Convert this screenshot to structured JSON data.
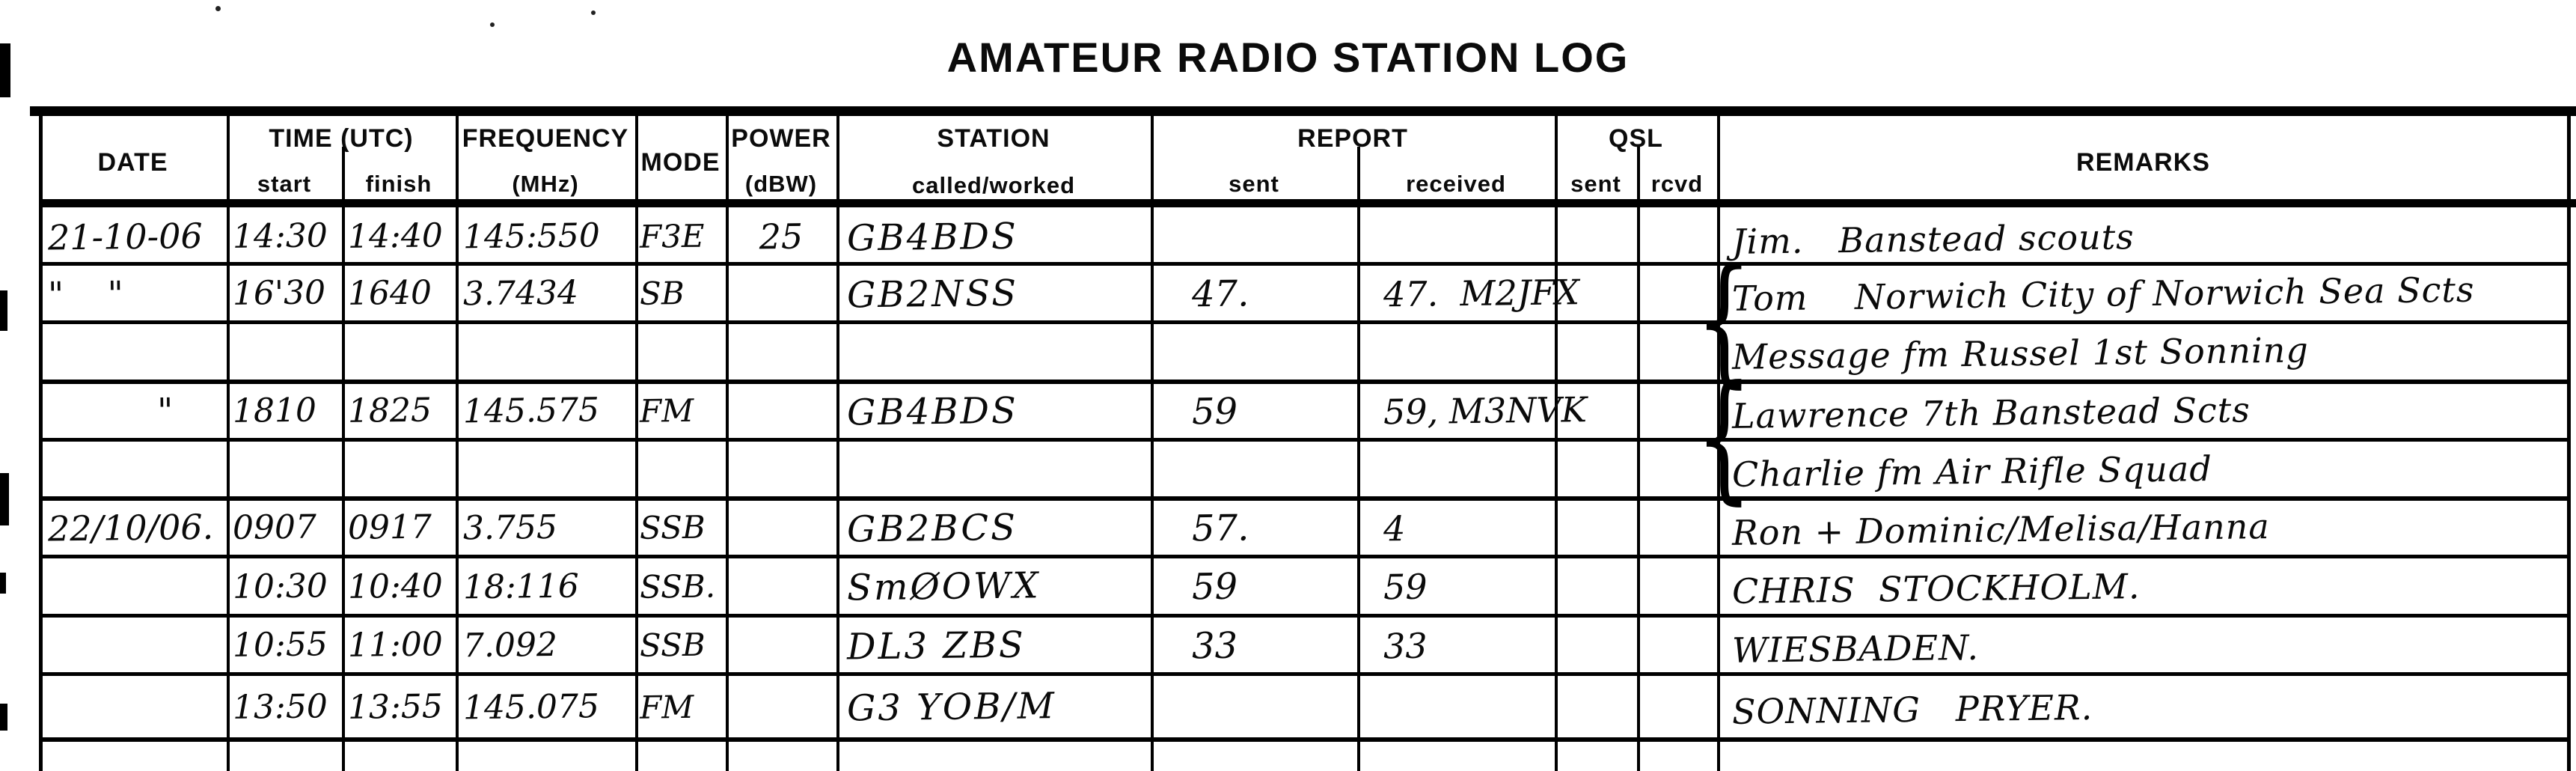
{
  "title": "AMATEUR RADIO STATION LOG",
  "header": {
    "date": "DATE",
    "time_group": "TIME (UTC)",
    "time_start": "start",
    "time_finish": "finish",
    "frequency_line1": "FREQUENCY",
    "frequency_line2": "(MHz)",
    "mode": "MODE",
    "power_line1": "POWER",
    "power_line2": "(dBW)",
    "station_line1": "STATION",
    "station_line2": "called/worked",
    "report_group": "REPORT",
    "report_sent": "sent",
    "report_received": "received",
    "qsl_group": "QSL",
    "qsl_sent": "sent",
    "qsl_rcvd": "rcvd",
    "remarks": "REMARKS"
  },
  "log_rows": [
    {
      "date": "21-10-06",
      "start": "14:30",
      "finish": "14:40",
      "frequency": "145:550",
      "mode": "F3E",
      "power": "25",
      "station": "GB4BDS",
      "sent": "",
      "received": "",
      "qsl_sent": "",
      "qsl_rcvd": "",
      "remarks": "Jim.   Banstead scouts"
    },
    {
      "date": "\"    \"",
      "start": "16'30",
      "finish": "1640",
      "frequency": "3.7434",
      "mode": "SB",
      "power": "",
      "station": "GB2NSS",
      "sent": "47.",
      "received": "47.  M2JFX",
      "qsl_sent": "",
      "qsl_rcvd": "",
      "remarks": "Tom    Norwich City of Norwich Sea Scts"
    },
    {
      "date": "",
      "start": "",
      "finish": "",
      "frequency": "",
      "mode": "",
      "power": "",
      "station": "",
      "sent": "",
      "received": "",
      "qsl_sent": "",
      "qsl_rcvd": "",
      "remarks": "Message fm Russel 1st Sonning"
    },
    {
      "date": "          \"",
      "start": "1810",
      "finish": "1825",
      "frequency": "145.575",
      "mode": "FM",
      "power": "",
      "station": "GB4BDS",
      "sent": "59",
      "received": "59, M3NVK",
      "qsl_sent": "",
      "qsl_rcvd": "",
      "remarks": "Lawrence 7th Banstead Scts"
    },
    {
      "date": "",
      "start": "",
      "finish": "",
      "frequency": "",
      "mode": "",
      "power": "",
      "station": "",
      "sent": "",
      "received": "",
      "qsl_sent": "",
      "qsl_rcvd": "",
      "remarks": "Charlie fm Air Rifle Squad"
    },
    {
      "date": "22/10/06.",
      "start": "0907",
      "finish": "0917",
      "frequency": "3.755",
      "mode": "SSB",
      "power": "",
      "station": "GB2BCS",
      "sent": "57.",
      "received": "4",
      "qsl_sent": "",
      "qsl_rcvd": "",
      "remarks": "Ron + Dominic/Melisa/Hanna"
    },
    {
      "date": "",
      "start": "10:30",
      "finish": "10:40",
      "frequency": "18:116",
      "mode": "SSB.",
      "power": "",
      "station": "SmØOWX",
      "sent": "59",
      "received": "59",
      "qsl_sent": "",
      "qsl_rcvd": "",
      "remarks": "CHRIS  STOCKHOLM."
    },
    {
      "date": "",
      "start": "10:55",
      "finish": "11:00",
      "frequency": "7.092",
      "mode": "SSB",
      "power": "",
      "station": "DL3 ZBS",
      "sent": "33",
      "received": "33",
      "qsl_sent": "",
      "qsl_rcvd": "",
      "remarks": "WIESBADEN."
    },
    {
      "date": "",
      "start": "13:50",
      "finish": "13:55",
      "frequency": "145.075",
      "mode": "FM",
      "power": "",
      "station": "G3 YOB/M",
      "sent": "",
      "received": "",
      "qsl_sent": "",
      "qsl_rcvd": "",
      "remarks": "SONNING   PRYER."
    }
  ],
  "decorations": {
    "brace": "{"
  }
}
